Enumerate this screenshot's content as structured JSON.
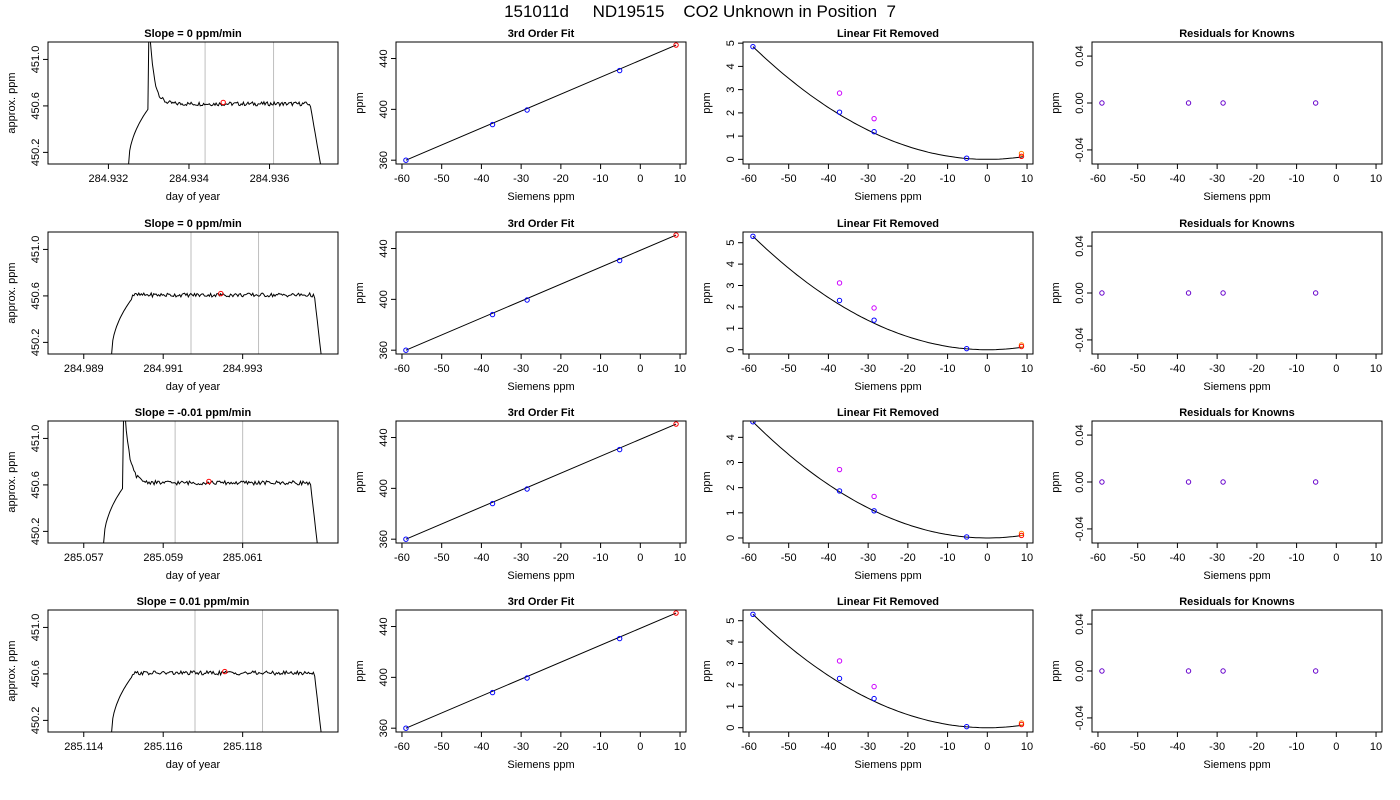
{
  "page": {
    "title": "151011d     ND19515    CO2 Unknown in Position  7"
  },
  "colors": {
    "line": "#000000",
    "grid_vline": "#bebebe",
    "known_point": "#0000ff",
    "unknown_point": "#ff0000",
    "raw_point": "#cc00ff",
    "orange_point": "#ff8000",
    "residual_point": "#6600cc"
  },
  "chart_data": [
    {
      "type": "line",
      "row": 0,
      "col": 0,
      "title": "Slope =  0  ppm/min",
      "xlabel": "day of year",
      "ylabel": "approx. ppm",
      "xlim": [
        284.9305,
        284.9377
      ],
      "ylim": [
        450.1,
        451.15
      ],
      "xticks": [
        284.932,
        284.934,
        284.936
      ],
      "xtick_labels": [
        "284.932",
        "284.934",
        "284.936"
      ],
      "yticks": [
        450.2,
        450.6,
        451.0
      ],
      "ytick_labels": [
        "450.2",
        "450.6",
        "451.0"
      ],
      "vlines": [
        284.9344,
        284.9361
      ],
      "trace": {
        "x_start": 284.9325,
        "x_end": 284.9373,
        "level": 450.63,
        "rise_end": 284.933,
        "spike_x": 284.933,
        "spike_peak": 451.4,
        "start_level": 450.1,
        "end_drop": 284.937
      },
      "marker": {
        "x": 284.93485,
        "y": 450.63
      }
    },
    {
      "type": "scatter",
      "row": 0,
      "col": 1,
      "title": "3rd Order Fit",
      "xlabel": "Siemens ppm",
      "ylabel": "ppm",
      "xlim": [
        -61.5,
        11.5
      ],
      "ylim": [
        357,
        453
      ],
      "xticks": [
        -60,
        -50,
        -40,
        -30,
        -20,
        -10,
        0,
        10
      ],
      "xtick_labels": [
        "-60",
        "-50",
        "-40",
        "-30",
        "-20",
        "-10",
        "0",
        "10"
      ],
      "yticks": [
        360,
        400,
        440
      ],
      "ytick_labels": [
        "360",
        "400",
        "440"
      ],
      "fit_line": {
        "x": [
          -59,
          9
        ],
        "y": [
          360,
          450.6
        ]
      },
      "known_points": {
        "x": [
          -59,
          -37.2,
          -28.5,
          -5.2
        ],
        "y": [
          360,
          388,
          399.5,
          430.5
        ]
      },
      "unknown_points": {
        "x": [
          9
        ],
        "y": [
          450.6
        ]
      }
    },
    {
      "type": "scatter",
      "row": 0,
      "col": 2,
      "title": "Linear Fit Removed",
      "xlabel": "Siemens ppm",
      "ylabel": "ppm",
      "xlim": [
        -61.5,
        11.5
      ],
      "ylim": [
        -0.2,
        5.05
      ],
      "xticks": [
        -60,
        -50,
        -40,
        -30,
        -20,
        -10,
        0,
        10
      ],
      "xtick_labels": [
        "-60",
        "-50",
        "-40",
        "-30",
        "-20",
        "-10",
        "0",
        "10"
      ],
      "yticks": [
        0,
        1,
        2,
        3,
        4,
        5
      ],
      "ytick_labels": [
        "0",
        "1",
        "2",
        "3",
        "4",
        "5"
      ],
      "fit_curve": {
        "x_min": -59,
        "x_max": 9,
        "peak": 4.85
      },
      "known_points": {
        "x": [
          -59,
          -37.2,
          -28.5,
          -5.2
        ],
        "y": [
          4.85,
          2.03,
          1.19,
          0.05
        ]
      },
      "raw_points": {
        "x": [
          -37.2,
          -28.5
        ],
        "y": [
          2.85,
          1.75
        ]
      },
      "unknown_points": {
        "x": [
          8.6
        ],
        "y": [
          0.13
        ]
      },
      "orange_points": {
        "x": [
          8.6
        ],
        "y": [
          0.25
        ]
      }
    },
    {
      "type": "scatter",
      "row": 0,
      "col": 3,
      "title": "Residuals for Knowns",
      "xlabel": "Siemens ppm",
      "ylabel": "ppm",
      "xlim": [
        -61.5,
        11.5
      ],
      "ylim": [
        -0.052,
        0.052
      ],
      "xticks": [
        -60,
        -50,
        -40,
        -30,
        -20,
        -10,
        0,
        10
      ],
      "xtick_labels": [
        "-60",
        "-50",
        "-40",
        "-30",
        "-20",
        "-10",
        "0",
        "10"
      ],
      "yticks": [
        -0.04,
        0,
        0.04
      ],
      "ytick_labels": [
        "-0.04",
        "0.00",
        "0.04"
      ],
      "residual_points": {
        "x": [
          -59,
          -37.2,
          -28.5,
          -5.2
        ],
        "y": [
          0,
          0,
          0,
          0
        ]
      }
    },
    {
      "type": "line",
      "row": 1,
      "col": 0,
      "title": "Slope =  0  ppm/min",
      "xlabel": "day of year",
      "ylabel": "approx. ppm",
      "xlim": [
        284.9881,
        284.9954
      ],
      "ylim": [
        450.1,
        451.15
      ],
      "xticks": [
        284.989,
        284.991,
        284.993
      ],
      "xtick_labels": [
        "284.989",
        "284.991",
        "284.993"
      ],
      "yticks": [
        450.2,
        450.6,
        451.0
      ],
      "ytick_labels": [
        "450.2",
        "450.6",
        "451.0"
      ],
      "vlines": [
        284.9917,
        284.9934
      ],
      "trace": {
        "x_start": 284.9897,
        "x_end": 284.995,
        "level": 450.62,
        "rise_end": 284.9902,
        "spike_x": null,
        "spike_peak": null,
        "start_level": 450.1,
        "end_drop": 284.9948
      },
      "marker": {
        "x": 284.99245,
        "y": 450.62
      }
    },
    {
      "type": "scatter",
      "row": 1,
      "col": 1,
      "title": "3rd Order Fit",
      "xlabel": "Siemens ppm",
      "ylabel": "ppm",
      "xlim": [
        -61.5,
        11.5
      ],
      "ylim": [
        357,
        453
      ],
      "xticks": [
        -60,
        -50,
        -40,
        -30,
        -20,
        -10,
        0,
        10
      ],
      "xtick_labels": [
        "-60",
        "-50",
        "-40",
        "-30",
        "-20",
        "-10",
        "0",
        "10"
      ],
      "yticks": [
        360,
        400,
        440
      ],
      "ytick_labels": [
        "360",
        "400",
        "440"
      ],
      "fit_line": {
        "x": [
          -59,
          9
        ],
        "y": [
          360,
          450.6
        ]
      },
      "known_points": {
        "x": [
          -59,
          -37.2,
          -28.5,
          -5.2
        ],
        "y": [
          360,
          388,
          399.5,
          430.5
        ]
      },
      "unknown_points": {
        "x": [
          9
        ],
        "y": [
          450.6
        ]
      }
    },
    {
      "type": "scatter",
      "row": 1,
      "col": 2,
      "title": "Linear Fit Removed",
      "xlabel": "Siemens ppm",
      "ylabel": "ppm",
      "xlim": [
        -61.5,
        11.5
      ],
      "ylim": [
        -0.2,
        5.5
      ],
      "xticks": [
        -60,
        -50,
        -40,
        -30,
        -20,
        -10,
        0,
        10
      ],
      "xtick_labels": [
        "-60",
        "-50",
        "-40",
        "-30",
        "-20",
        "-10",
        "0",
        "10"
      ],
      "yticks": [
        0,
        1,
        2,
        3,
        4,
        5
      ],
      "ytick_labels": [
        "0",
        "1",
        "2",
        "3",
        "4",
        "5"
      ],
      "fit_curve": {
        "x_min": -59,
        "x_max": 9,
        "peak": 5.3
      },
      "known_points": {
        "x": [
          -59,
          -37.2,
          -28.5,
          -5.2
        ],
        "y": [
          5.3,
          2.3,
          1.38,
          0.05
        ]
      },
      "raw_points": {
        "x": [
          -37.2,
          -28.5
        ],
        "y": [
          3.12,
          1.95
        ]
      },
      "unknown_points": {
        "x": [
          8.6
        ],
        "y": [
          0.15
        ]
      },
      "orange_points": {
        "x": [
          8.6
        ],
        "y": [
          0.22
        ]
      }
    },
    {
      "type": "scatter",
      "row": 1,
      "col": 3,
      "title": "Residuals for Knowns",
      "xlabel": "Siemens ppm",
      "ylabel": "ppm",
      "xlim": [
        -61.5,
        11.5
      ],
      "ylim": [
        -0.052,
        0.052
      ],
      "xticks": [
        -60,
        -50,
        -40,
        -30,
        -20,
        -10,
        0,
        10
      ],
      "xtick_labels": [
        "-60",
        "-50",
        "-40",
        "-30",
        "-20",
        "-10",
        "0",
        "10"
      ],
      "yticks": [
        -0.04,
        0,
        0.04
      ],
      "ytick_labels": [
        "-0.04",
        "0.00",
        "0.04"
      ],
      "residual_points": {
        "x": [
          -59,
          -37.2,
          -28.5,
          -5.2
        ],
        "y": [
          0,
          0,
          0,
          0
        ]
      }
    },
    {
      "type": "line",
      "row": 2,
      "col": 0,
      "title": "Slope =  -0.01  ppm/min",
      "xlabel": "day of year",
      "ylabel": "approx. ppm",
      "xlim": [
        285.0561,
        285.0634
      ],
      "ylim": [
        450.1,
        451.15
      ],
      "xticks": [
        285.057,
        285.059,
        285.061
      ],
      "xtick_labels": [
        "285.057",
        "285.059",
        "285.061"
      ],
      "yticks": [
        450.2,
        450.6,
        451.0
      ],
      "ytick_labels": [
        "450.2",
        "450.6",
        "451.0"
      ],
      "vlines": [
        285.0593,
        285.061
      ],
      "trace": {
        "x_start": 285.0575,
        "x_end": 285.0629,
        "level": 450.63,
        "rise_end": 285.058,
        "spike_x": 285.058,
        "spike_peak": 451.4,
        "start_level": 450.1,
        "end_drop": 285.0627
      },
      "marker": {
        "x": 285.06015,
        "y": 450.63
      }
    },
    {
      "type": "scatter",
      "row": 2,
      "col": 1,
      "title": "3rd Order Fit",
      "xlabel": "Siemens ppm",
      "ylabel": "ppm",
      "xlim": [
        -61.5,
        11.5
      ],
      "ylim": [
        357,
        453
      ],
      "xticks": [
        -60,
        -50,
        -40,
        -30,
        -20,
        -10,
        0,
        10
      ],
      "xtick_labels": [
        "-60",
        "-50",
        "-40",
        "-30",
        "-20",
        "-10",
        "0",
        "10"
      ],
      "yticks": [
        360,
        400,
        440
      ],
      "ytick_labels": [
        "360",
        "400",
        "440"
      ],
      "fit_line": {
        "x": [
          -59,
          9
        ],
        "y": [
          360,
          450.6
        ]
      },
      "known_points": {
        "x": [
          -59,
          -37.2,
          -28.5,
          -5.2
        ],
        "y": [
          360,
          388,
          399.5,
          430.5
        ]
      },
      "unknown_points": {
        "x": [
          9
        ],
        "y": [
          450.6
        ]
      }
    },
    {
      "type": "scatter",
      "row": 2,
      "col": 2,
      "title": "Linear Fit Removed",
      "xlabel": "Siemens ppm",
      "ylabel": "ppm",
      "xlim": [
        -61.5,
        11.5
      ],
      "ylim": [
        -0.2,
        4.65
      ],
      "xticks": [
        -60,
        -50,
        -40,
        -30,
        -20,
        -10,
        0,
        10
      ],
      "xtick_labels": [
        "-60",
        "-50",
        "-40",
        "-30",
        "-20",
        "-10",
        "0",
        "10"
      ],
      "yticks": [
        0,
        1,
        2,
        3,
        4
      ],
      "ytick_labels": [
        "0",
        "1",
        "2",
        "3",
        "4"
      ],
      "fit_curve": {
        "x_min": -59,
        "x_max": 9,
        "peak": 4.62
      },
      "known_points": {
        "x": [
          -59,
          -37.2,
          -28.5,
          -5.2
        ],
        "y": [
          4.62,
          1.87,
          1.08,
          0.04
        ]
      },
      "raw_points": {
        "x": [
          -37.2,
          -28.5
        ],
        "y": [
          2.72,
          1.65
        ]
      },
      "unknown_points": {
        "x": [
          8.6
        ],
        "y": [
          0.1
        ]
      },
      "orange_points": {
        "x": [
          8.6
        ],
        "y": [
          0.18
        ]
      }
    },
    {
      "type": "scatter",
      "row": 2,
      "col": 3,
      "title": "Residuals for Knowns",
      "xlabel": "Siemens ppm",
      "ylabel": "ppm",
      "xlim": [
        -61.5,
        11.5
      ],
      "ylim": [
        -0.052,
        0.052
      ],
      "xticks": [
        -60,
        -50,
        -40,
        -30,
        -20,
        -10,
        0,
        10
      ],
      "xtick_labels": [
        "-60",
        "-50",
        "-40",
        "-30",
        "-20",
        "-10",
        "0",
        "10"
      ],
      "yticks": [
        -0.04,
        0,
        0.04
      ],
      "ytick_labels": [
        "-0.04",
        "0.00",
        "0.04"
      ],
      "residual_points": {
        "x": [
          -59,
          -37.2,
          -28.5,
          -5.2
        ],
        "y": [
          0,
          0,
          0,
          0
        ]
      }
    },
    {
      "type": "line",
      "row": 3,
      "col": 0,
      "title": "Slope =  0.01  ppm/min",
      "xlabel": "day of year",
      "ylabel": "approx. ppm",
      "xlim": [
        285.1131,
        285.1204
      ],
      "ylim": [
        450.1,
        451.15
      ],
      "xticks": [
        285.114,
        285.116,
        285.118
      ],
      "xtick_labels": [
        "285.114",
        "285.116",
        "285.118"
      ],
      "yticks": [
        450.2,
        450.6,
        451.0
      ],
      "ytick_labels": [
        "450.2",
        "450.6",
        "451.0"
      ],
      "vlines": [
        285.1168,
        285.1185
      ],
      "trace": {
        "x_start": 285.1147,
        "x_end": 285.12,
        "level": 450.62,
        "rise_end": 285.1152,
        "spike_x": null,
        "spike_peak": null,
        "start_level": 450.1,
        "end_drop": 285.1198
      },
      "marker": {
        "x": 285.11755,
        "y": 450.62
      }
    },
    {
      "type": "scatter",
      "row": 3,
      "col": 1,
      "title": "3rd Order Fit",
      "xlabel": "Siemens ppm",
      "ylabel": "ppm",
      "xlim": [
        -61.5,
        11.5
      ],
      "ylim": [
        357,
        453
      ],
      "xticks": [
        -60,
        -50,
        -40,
        -30,
        -20,
        -10,
        0,
        10
      ],
      "xtick_labels": [
        "-60",
        "-50",
        "-40",
        "-30",
        "-20",
        "-10",
        "0",
        "10"
      ],
      "yticks": [
        360,
        400,
        440
      ],
      "ytick_labels": [
        "360",
        "400",
        "440"
      ],
      "fit_line": {
        "x": [
          -59,
          9
        ],
        "y": [
          360,
          450.6
        ]
      },
      "known_points": {
        "x": [
          -59,
          -37.2,
          -28.5,
          -5.2
        ],
        "y": [
          360,
          388,
          399.5,
          430.5
        ]
      },
      "unknown_points": {
        "x": [
          9
        ],
        "y": [
          450.6
        ]
      }
    },
    {
      "type": "scatter",
      "row": 3,
      "col": 2,
      "title": "Linear Fit Removed",
      "xlabel": "Siemens ppm",
      "ylabel": "ppm",
      "xlim": [
        -61.5,
        11.5
      ],
      "ylim": [
        -0.2,
        5.5
      ],
      "xticks": [
        -60,
        -50,
        -40,
        -30,
        -20,
        -10,
        0,
        10
      ],
      "xtick_labels": [
        "-60",
        "-50",
        "-40",
        "-30",
        "-20",
        "-10",
        "0",
        "10"
      ],
      "yticks": [
        0,
        1,
        2,
        3,
        4,
        5
      ],
      "ytick_labels": [
        "0",
        "1",
        "2",
        "3",
        "4",
        "5"
      ],
      "fit_curve": {
        "x_min": -59,
        "x_max": 9,
        "peak": 5.3
      },
      "known_points": {
        "x": [
          -59,
          -37.2,
          -28.5,
          -5.2
        ],
        "y": [
          5.3,
          2.3,
          1.36,
          0.05
        ]
      },
      "raw_points": {
        "x": [
          -37.2,
          -28.5
        ],
        "y": [
          3.12,
          1.92
        ]
      },
      "unknown_points": {
        "x": [
          8.6
        ],
        "y": [
          0.15
        ]
      },
      "orange_points": {
        "x": [
          8.6
        ],
        "y": [
          0.22
        ]
      }
    },
    {
      "type": "scatter",
      "row": 3,
      "col": 3,
      "title": "Residuals for Knowns",
      "xlabel": "Siemens ppm",
      "ylabel": "ppm",
      "xlim": [
        -61.5,
        11.5
      ],
      "ylim": [
        -0.052,
        0.052
      ],
      "xticks": [
        -60,
        -50,
        -40,
        -30,
        -20,
        -10,
        0,
        10
      ],
      "xtick_labels": [
        "-60",
        "-50",
        "-40",
        "-30",
        "-20",
        "-10",
        "0",
        "10"
      ],
      "yticks": [
        -0.04,
        0,
        0.04
      ],
      "ytick_labels": [
        "-0.04",
        "0.00",
        "0.04"
      ],
      "residual_points": {
        "x": [
          -59,
          -37.2,
          -28.5,
          -5.2
        ],
        "y": [
          0,
          0,
          0,
          0
        ]
      }
    }
  ]
}
